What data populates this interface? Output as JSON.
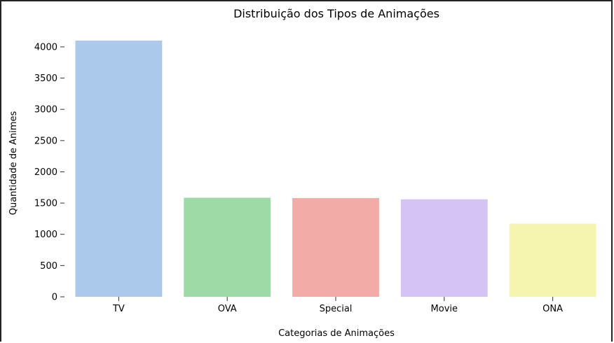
{
  "chart_data": {
    "type": "bar",
    "title": "Distribuição dos Tipos de Animações",
    "xlabel": "Categorias de Animações",
    "ylabel": "Quantidade de Animes",
    "categories": [
      "TV",
      "OVA",
      "Special",
      "Movie",
      "ONA"
    ],
    "values": [
      4100,
      1585,
      1580,
      1560,
      1170
    ],
    "colors": [
      "#abc9ea",
      "#9ddaa5",
      "#f2aba6",
      "#d5c3f5",
      "#f6f5b0"
    ],
    "ylim": [
      0,
      4100
    ],
    "yticks": [
      0,
      500,
      1000,
      1500,
      2000,
      2500,
      3000,
      3500,
      4000
    ],
    "grid": false,
    "legend": "none"
  }
}
